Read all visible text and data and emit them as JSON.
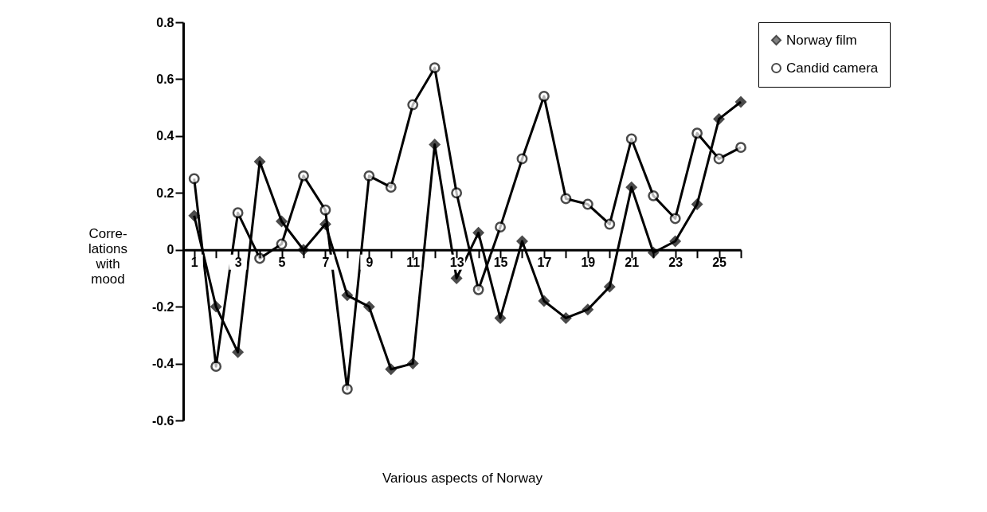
{
  "chart_data": {
    "type": "line",
    "xlabel": "Various aspects of Norway",
    "ylabel": "Corre-\nlations\nwith\nmood",
    "x": [
      1,
      2,
      3,
      4,
      5,
      6,
      7,
      8,
      9,
      10,
      11,
      12,
      13,
      14,
      15,
      16,
      17,
      18,
      19,
      20,
      21,
      22,
      23,
      24,
      25,
      26
    ],
    "series": [
      {
        "name": "Norway  film",
        "color": "#000000",
        "marker": "diamond",
        "values": [
          0.12,
          -0.2,
          -0.36,
          0.31,
          0.1,
          0,
          0.09,
          -0.16,
          -0.2,
          -0.42,
          -0.4,
          0.37,
          -0.1,
          0.06,
          -0.24,
          0.03,
          -0.18,
          -0.24,
          -0.21,
          -0.13,
          0.22,
          -0.01,
          0.03,
          0.16,
          0.46,
          0.52
        ]
      },
      {
        "name": "Candid camera",
        "color": "#000000",
        "marker": "circle",
        "values": [
          0.25,
          -0.41,
          0.13,
          -0.03,
          0.02,
          0.26,
          0.14,
          -0.49,
          0.26,
          0.22,
          0.51,
          0.64,
          0.2,
          -0.14,
          0.08,
          0.32,
          0.54,
          0.18,
          0.16,
          0.09,
          0.39,
          0.19,
          0.11,
          0.41,
          0.32,
          0.36
        ]
      }
    ],
    "xlim": [
      0.5,
      26
    ],
    "xticks": [
      1,
      {
        "value": 2,
        "label": null
      },
      3,
      {
        "value": 4,
        "label": null
      },
      5,
      {
        "value": 6,
        "label": null
      },
      7,
      {
        "value": 8,
        "label": null
      },
      9,
      {
        "value": 10,
        "label": null
      },
      11,
      {
        "value": 12,
        "label": null
      },
      13,
      {
        "value": 14,
        "label": null
      },
      15,
      {
        "value": 16,
        "label": null
      },
      17,
      {
        "value": 18,
        "label": null
      },
      19,
      {
        "value": 20,
        "label": null
      },
      21,
      {
        "value": 22,
        "label": null
      },
      23,
      {
        "value": 24,
        "label": null
      },
      25,
      {
        "value": 26,
        "label": null
      }
    ],
    "ylim": [
      -0.6,
      0.8
    ],
    "yticks": [
      -0.6,
      -0.4,
      -0.2,
      0,
      0.2,
      0.4,
      0.6,
      0.8
    ],
    "legend": "right",
    "grid": false,
    "line_style": "solid"
  }
}
